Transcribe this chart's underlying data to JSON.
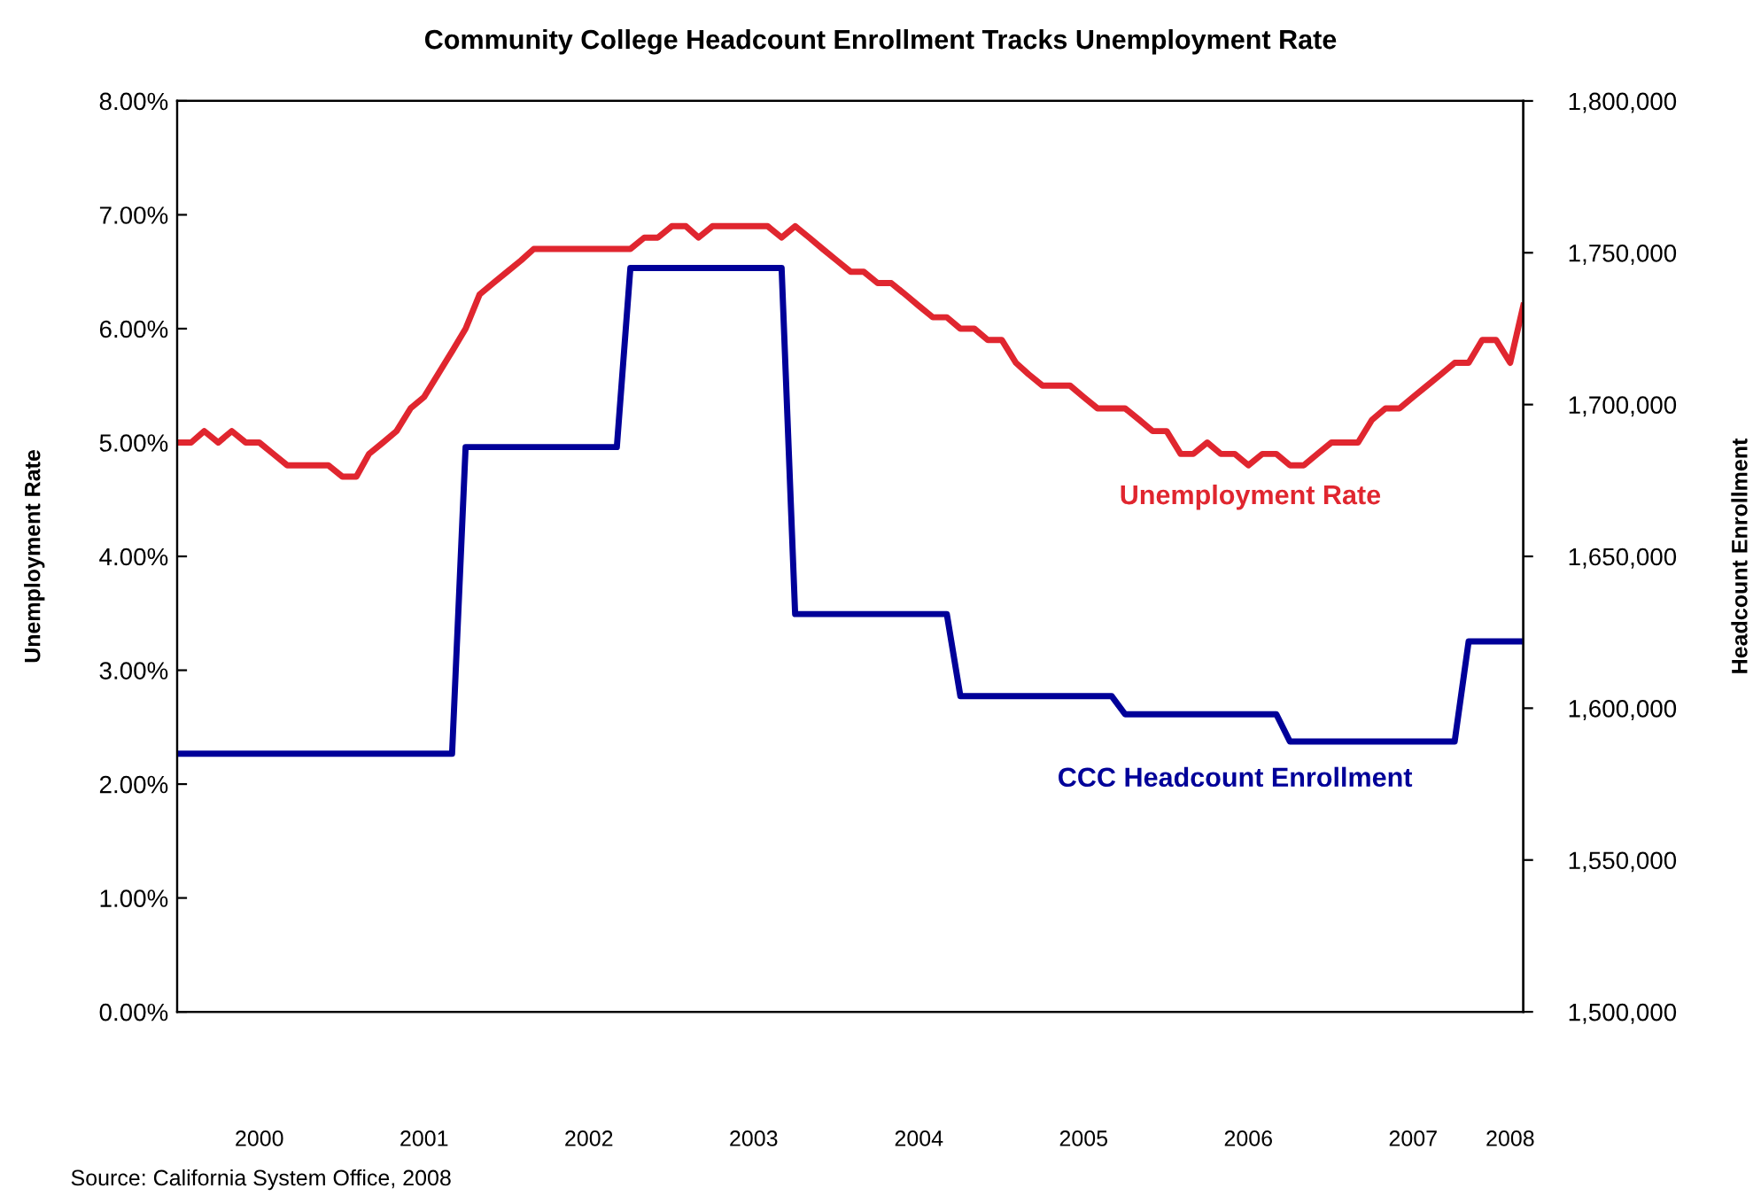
{
  "chart_data": {
    "type": "line",
    "title": "Community College Headcount Enrollment Tracks Unemployment Rate",
    "ylabel": "Unemployment Rate",
    "y2label": "Headcount Enrollment",
    "annotations": [
      "Source: California System Office, 2008"
    ],
    "x": [
      "2000-01",
      "2000-02",
      "2000-03",
      "2000-04",
      "2000-05",
      "2000-06",
      "2000-07",
      "2000-08",
      "2000-09",
      "2000-10",
      "2000-11",
      "2000-12",
      "2001-01",
      "2001-02",
      "2001-03",
      "2001-04",
      "2001-05",
      "2001-06",
      "2001-07",
      "2001-08",
      "2001-09",
      "2001-10",
      "2001-11",
      "2001-12",
      "2002-01",
      "2002-02",
      "2002-03",
      "2002-04",
      "2002-05",
      "2002-06",
      "2002-07",
      "2002-08",
      "2002-09",
      "2002-10",
      "2002-11",
      "2002-12",
      "2003-01",
      "2003-02",
      "2003-03",
      "2003-04",
      "2003-05",
      "2003-06",
      "2003-07",
      "2003-08",
      "2003-09",
      "2003-10",
      "2003-11",
      "2003-12",
      "2004-01",
      "2004-02",
      "2004-03",
      "2004-04",
      "2004-05",
      "2004-06",
      "2004-07",
      "2004-08",
      "2004-09",
      "2004-10",
      "2004-11",
      "2004-12",
      "2005-01",
      "2005-02",
      "2005-03",
      "2005-04",
      "2005-05",
      "2005-06",
      "2005-07",
      "2005-08",
      "2005-09",
      "2005-10",
      "2005-11",
      "2005-12",
      "2006-01",
      "2006-02",
      "2006-03",
      "2006-04",
      "2006-05",
      "2006-06",
      "2006-07",
      "2006-08",
      "2006-09",
      "2006-10",
      "2006-11",
      "2006-12",
      "2007-01",
      "2007-02",
      "2007-03",
      "2007-04",
      "2007-05",
      "2007-06",
      "2007-07",
      "2007-08",
      "2007-09",
      "2007-10",
      "2007-11",
      "2007-12",
      "2008-01",
      "2008-02",
      "2008-03"
    ],
    "series": [
      {
        "name": "Unemployment Rate",
        "color": "#e0262f",
        "values": [
          5.0,
          5.0,
          5.1,
          5.0,
          5.1,
          5.0,
          5.0,
          4.9,
          4.8,
          4.8,
          4.8,
          4.8,
          4.7,
          4.7,
          4.9,
          5.0,
          5.1,
          5.3,
          5.4,
          5.6,
          5.8,
          6.0,
          6.3,
          6.4,
          6.5,
          6.6,
          6.7,
          6.7,
          6.7,
          6.7,
          6.7,
          6.7,
          6.7,
          6.7,
          6.8,
          6.8,
          6.9,
          6.9,
          6.8,
          6.9,
          6.9,
          6.9,
          6.9,
          6.9,
          6.8,
          6.9,
          6.8,
          6.7,
          6.6,
          6.5,
          6.5,
          6.4,
          6.4,
          6.3,
          6.2,
          6.1,
          6.1,
          6.0,
          6.0,
          5.9,
          5.9,
          5.7,
          5.6,
          5.5,
          5.5,
          5.5,
          5.4,
          5.3,
          5.3,
          5.3,
          5.2,
          5.1,
          5.1,
          4.9,
          4.9,
          5.0,
          4.9,
          4.9,
          4.8,
          4.9,
          4.9,
          4.8,
          4.8,
          4.9,
          5.0,
          5.0,
          5.0,
          5.2,
          5.3,
          5.3,
          5.4,
          5.5,
          5.6,
          5.7,
          5.7,
          5.9,
          5.9,
          5.7,
          6.2
        ]
      },
      {
        "name": "CCC Headcount Enrollment",
        "color": "#000099",
        "axis": "y2",
        "type": "step",
        "values": [
          1585000,
          1585000,
          1585000,
          1585000,
          1585000,
          1585000,
          1585000,
          1585000,
          1585000,
          1585000,
          1585000,
          1585000,
          1585000,
          1585000,
          1585000,
          1585000,
          1585000,
          1585000,
          1585000,
          1585000,
          1585000,
          1686000,
          1686000,
          1686000,
          1686000,
          1686000,
          1686000,
          1686000,
          1686000,
          1686000,
          1686000,
          1686000,
          1686000,
          1745000,
          1745000,
          1745000,
          1745000,
          1745000,
          1745000,
          1745000,
          1745000,
          1745000,
          1745000,
          1745000,
          1745000,
          1631000,
          1631000,
          1631000,
          1631000,
          1631000,
          1631000,
          1631000,
          1631000,
          1631000,
          1631000,
          1631000,
          1631000,
          1604000,
          1604000,
          1604000,
          1604000,
          1604000,
          1604000,
          1604000,
          1604000,
          1604000,
          1604000,
          1604000,
          1604000,
          1598000,
          1598000,
          1598000,
          1598000,
          1598000,
          1598000,
          1598000,
          1598000,
          1598000,
          1598000,
          1598000,
          1598000,
          1589000,
          1589000,
          1589000,
          1589000,
          1589000,
          1589000,
          1589000,
          1589000,
          1589000,
          1589000,
          1589000,
          1589000,
          1589000,
          1622000,
          1622000,
          1622000,
          1622000,
          1622000
        ]
      }
    ],
    "xlim": [
      "2000-01",
      "2008-03"
    ],
    "xticks": [
      {
        "value": "2000-07",
        "label": "2000"
      },
      {
        "value": "2001-07",
        "label": "2001"
      },
      {
        "value": "2002-07",
        "label": "2002"
      },
      {
        "value": "2003-07",
        "label": "2003"
      },
      {
        "value": "2004-07",
        "label": "2004"
      },
      {
        "value": "2005-07",
        "label": "2005"
      },
      {
        "value": "2006-07",
        "label": "2006"
      },
      {
        "value": "2007-07",
        "label": "2007"
      },
      {
        "value": "2008-02",
        "label": "2008"
      }
    ],
    "ylim": [
      0,
      8
    ],
    "yticks": [
      {
        "value": 0,
        "label": "0.00%"
      },
      {
        "value": 1,
        "label": "1.00%"
      },
      {
        "value": 2,
        "label": "2.00%"
      },
      {
        "value": 3,
        "label": "3.00%"
      },
      {
        "value": 4,
        "label": "4.00%"
      },
      {
        "value": 5,
        "label": "5.00%"
      },
      {
        "value": 6,
        "label": "6.00%"
      },
      {
        "value": 7,
        "label": "7.00%"
      },
      {
        "value": 8,
        "label": "8.00%"
      }
    ],
    "y2lim": [
      1500000,
      1800000
    ],
    "y2ticks": [
      {
        "value": 1500000,
        "label": "1,500,000"
      },
      {
        "value": 1550000,
        "label": "1,550,000"
      },
      {
        "value": 1600000,
        "label": "1,600,000"
      },
      {
        "value": 1650000,
        "label": "1,650,000"
      },
      {
        "value": 1700000,
        "label": "1,700,000"
      },
      {
        "value": 1750000,
        "label": "1,750,000"
      },
      {
        "value": 1800000,
        "label": "1,800,000"
      }
    ],
    "grid": false,
    "legend": false,
    "marker": "none",
    "line_style": "solid"
  }
}
